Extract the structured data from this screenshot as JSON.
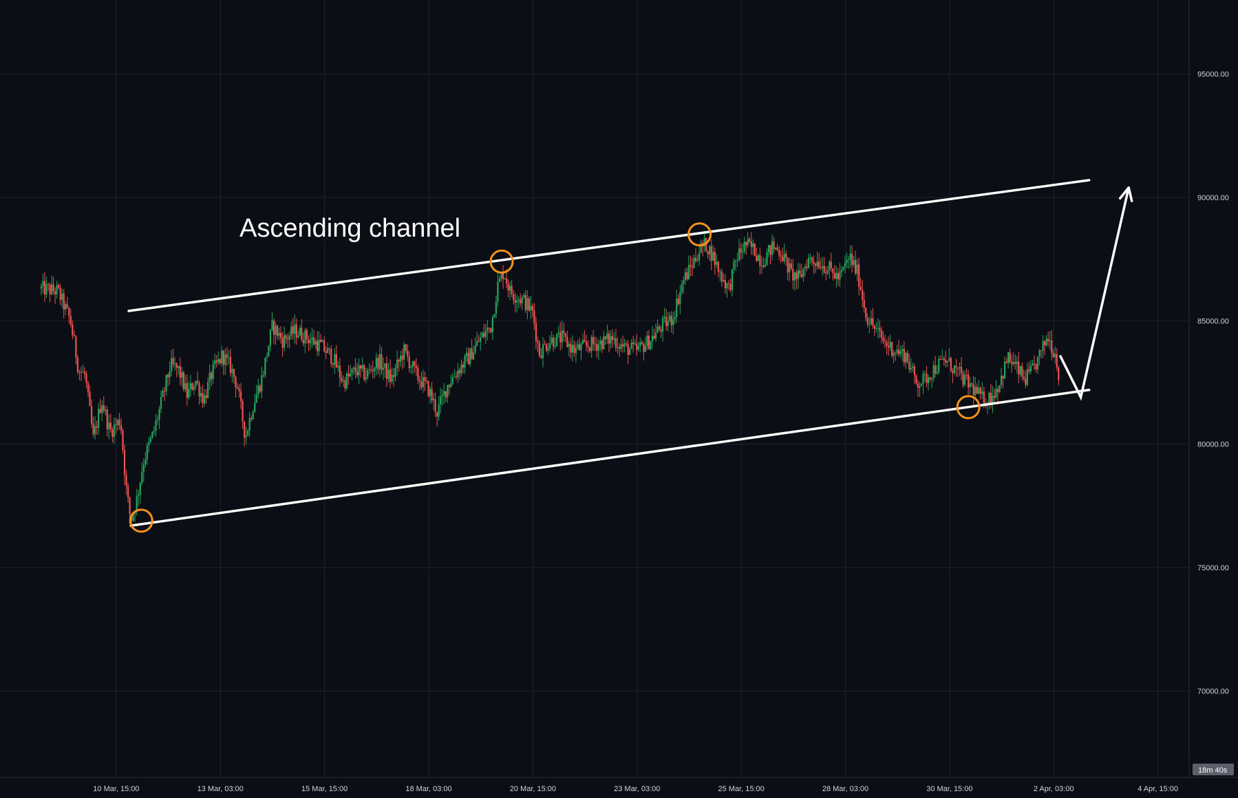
{
  "chart_data": {
    "type": "candlestick",
    "title": "",
    "annotation_title": "Ascending channel",
    "colors": {
      "background": "#0c0e15",
      "grid": "#1f222c",
      "up": "#26a65b",
      "down": "#ef5350",
      "channel": "#ffffff",
      "pivot_circle": "#f7931a",
      "axis_text": "#d1d4dc",
      "badge_bg": "#5d606b"
    },
    "y_axis": {
      "side": "right",
      "ylim": [
        66500,
        98000
      ],
      "ticks": [
        70000,
        75000,
        80000,
        85000,
        90000,
        95000
      ],
      "tick_labels": [
        "70000.00",
        "75000.00",
        "80000.00",
        "85000.00",
        "90000.00",
        "95000.00"
      ]
    },
    "x_axis": {
      "xlim": [
        -2.79,
        25.75
      ],
      "tick_positions": [
        0,
        2.5,
        5,
        7.5,
        10,
        12.5,
        15,
        17.5,
        20,
        22.5,
        25
      ],
      "tick_labels": [
        "10 Mar, 15:00",
        "13 Mar, 03:00",
        "15 Mar, 15:00",
        "18 Mar, 03:00",
        "20 Mar, 15:00",
        "23 Mar, 03:00",
        "25 Mar, 15:00",
        "28 Mar, 03:00",
        "30 Mar, 15:00",
        "2 Apr, 03:00",
        "4 Apr, 15:00"
      ],
      "x_unit": "days since 10 Mar, 15:00"
    },
    "grid": true,
    "countdown_badge": "18m 40s",
    "price_path": [
      [
        -1.8,
        86300
      ],
      [
        -1.4,
        86200
      ],
      [
        -1.1,
        85000
      ],
      [
        -0.9,
        83000
      ],
      [
        -0.75,
        82800
      ],
      [
        -0.55,
        80200
      ],
      [
        -0.35,
        81800
      ],
      [
        -0.15,
        80500
      ],
      [
        0.1,
        81000
      ],
      [
        0.25,
        78000
      ],
      [
        0.35,
        76900
      ],
      [
        0.5,
        77800
      ],
      [
        0.65,
        79300
      ],
      [
        0.9,
        80500
      ],
      [
        1.1,
        81800
      ],
      [
        1.3,
        83200
      ],
      [
        1.5,
        83000
      ],
      [
        1.7,
        82000
      ],
      [
        1.9,
        82600
      ],
      [
        2.1,
        81800
      ],
      [
        2.3,
        82900
      ],
      [
        2.55,
        83600
      ],
      [
        2.75,
        83100
      ],
      [
        2.9,
        82400
      ],
      [
        3.1,
        80300
      ],
      [
        3.3,
        81700
      ],
      [
        3.5,
        82700
      ],
      [
        3.75,
        84800
      ],
      [
        4.0,
        84200
      ],
      [
        4.3,
        84600
      ],
      [
        4.6,
        84300
      ],
      [
        4.9,
        84000
      ],
      [
        5.2,
        83500
      ],
      [
        5.45,
        82500
      ],
      [
        5.75,
        83000
      ],
      [
        6.0,
        82800
      ],
      [
        6.3,
        83400
      ],
      [
        6.6,
        82600
      ],
      [
        6.9,
        83800
      ],
      [
        7.2,
        82800
      ],
      [
        7.5,
        82200
      ],
      [
        7.7,
        81300
      ],
      [
        7.95,
        82400
      ],
      [
        8.2,
        83000
      ],
      [
        8.45,
        83500
      ],
      [
        8.75,
        84300
      ],
      [
        9.0,
        84800
      ],
      [
        9.15,
        86400
      ],
      [
        9.3,
        87000
      ],
      [
        9.45,
        86200
      ],
      [
        9.6,
        86000
      ],
      [
        9.8,
        85800
      ],
      [
        10.0,
        85300
      ],
      [
        10.15,
        83700
      ],
      [
        10.4,
        84200
      ],
      [
        10.7,
        84300
      ],
      [
        11.0,
        83800
      ],
      [
        11.3,
        84000
      ],
      [
        11.6,
        84100
      ],
      [
        11.9,
        84300
      ],
      [
        12.2,
        83900
      ],
      [
        12.5,
        83800
      ],
      [
        12.8,
        84200
      ],
      [
        13.1,
        84800
      ],
      [
        13.35,
        85100
      ],
      [
        13.6,
        86600
      ],
      [
        13.8,
        87200
      ],
      [
        14.0,
        87900
      ],
      [
        14.15,
        88100
      ],
      [
        14.3,
        87700
      ],
      [
        14.5,
        86900
      ],
      [
        14.7,
        86300
      ],
      [
        14.9,
        87600
      ],
      [
        15.1,
        88100
      ],
      [
        15.3,
        87900
      ],
      [
        15.5,
        87400
      ],
      [
        15.75,
        88000
      ],
      [
        15.95,
        87800
      ],
      [
        16.2,
        86900
      ],
      [
        16.4,
        86700
      ],
      [
        16.6,
        87500
      ],
      [
        16.85,
        87400
      ],
      [
        17.1,
        87100
      ],
      [
        17.35,
        86700
      ],
      [
        17.6,
        87600
      ],
      [
        17.8,
        86900
      ],
      [
        18.0,
        85200
      ],
      [
        18.2,
        84700
      ],
      [
        18.45,
        84100
      ],
      [
        18.7,
        83800
      ],
      [
        18.95,
        83600
      ],
      [
        19.2,
        82500
      ],
      [
        19.4,
        82600
      ],
      [
        19.65,
        83100
      ],
      [
        19.9,
        83400
      ],
      [
        20.15,
        83000
      ],
      [
        20.4,
        82500
      ],
      [
        20.6,
        82200
      ],
      [
        20.8,
        81800
      ],
      [
        21.0,
        81900
      ],
      [
        21.2,
        82500
      ],
      [
        21.4,
        83500
      ],
      [
        21.6,
        83100
      ],
      [
        21.8,
        82600
      ],
      [
        22.0,
        83000
      ],
      [
        22.2,
        83700
      ],
      [
        22.35,
        84400
      ],
      [
        22.45,
        84000
      ],
      [
        22.55,
        83600
      ],
      [
        22.65,
        82500
      ]
    ],
    "channel": {
      "upper": [
        [
          0.3,
          85400
        ],
        [
          23.35,
          90700
        ]
      ],
      "lower": [
        [
          0.35,
          76700
        ],
        [
          23.35,
          82200
        ]
      ]
    },
    "pivots": [
      {
        "x": 0.6,
        "y": 76900
      },
      {
        "x": 9.25,
        "y": 87400
      },
      {
        "x": 14.0,
        "y": 88500
      },
      {
        "x": 20.45,
        "y": 81500
      }
    ],
    "projection_arrow": [
      [
        22.65,
        83600
      ],
      [
        23.15,
        81900
      ],
      [
        24.3,
        90400
      ]
    ]
  }
}
